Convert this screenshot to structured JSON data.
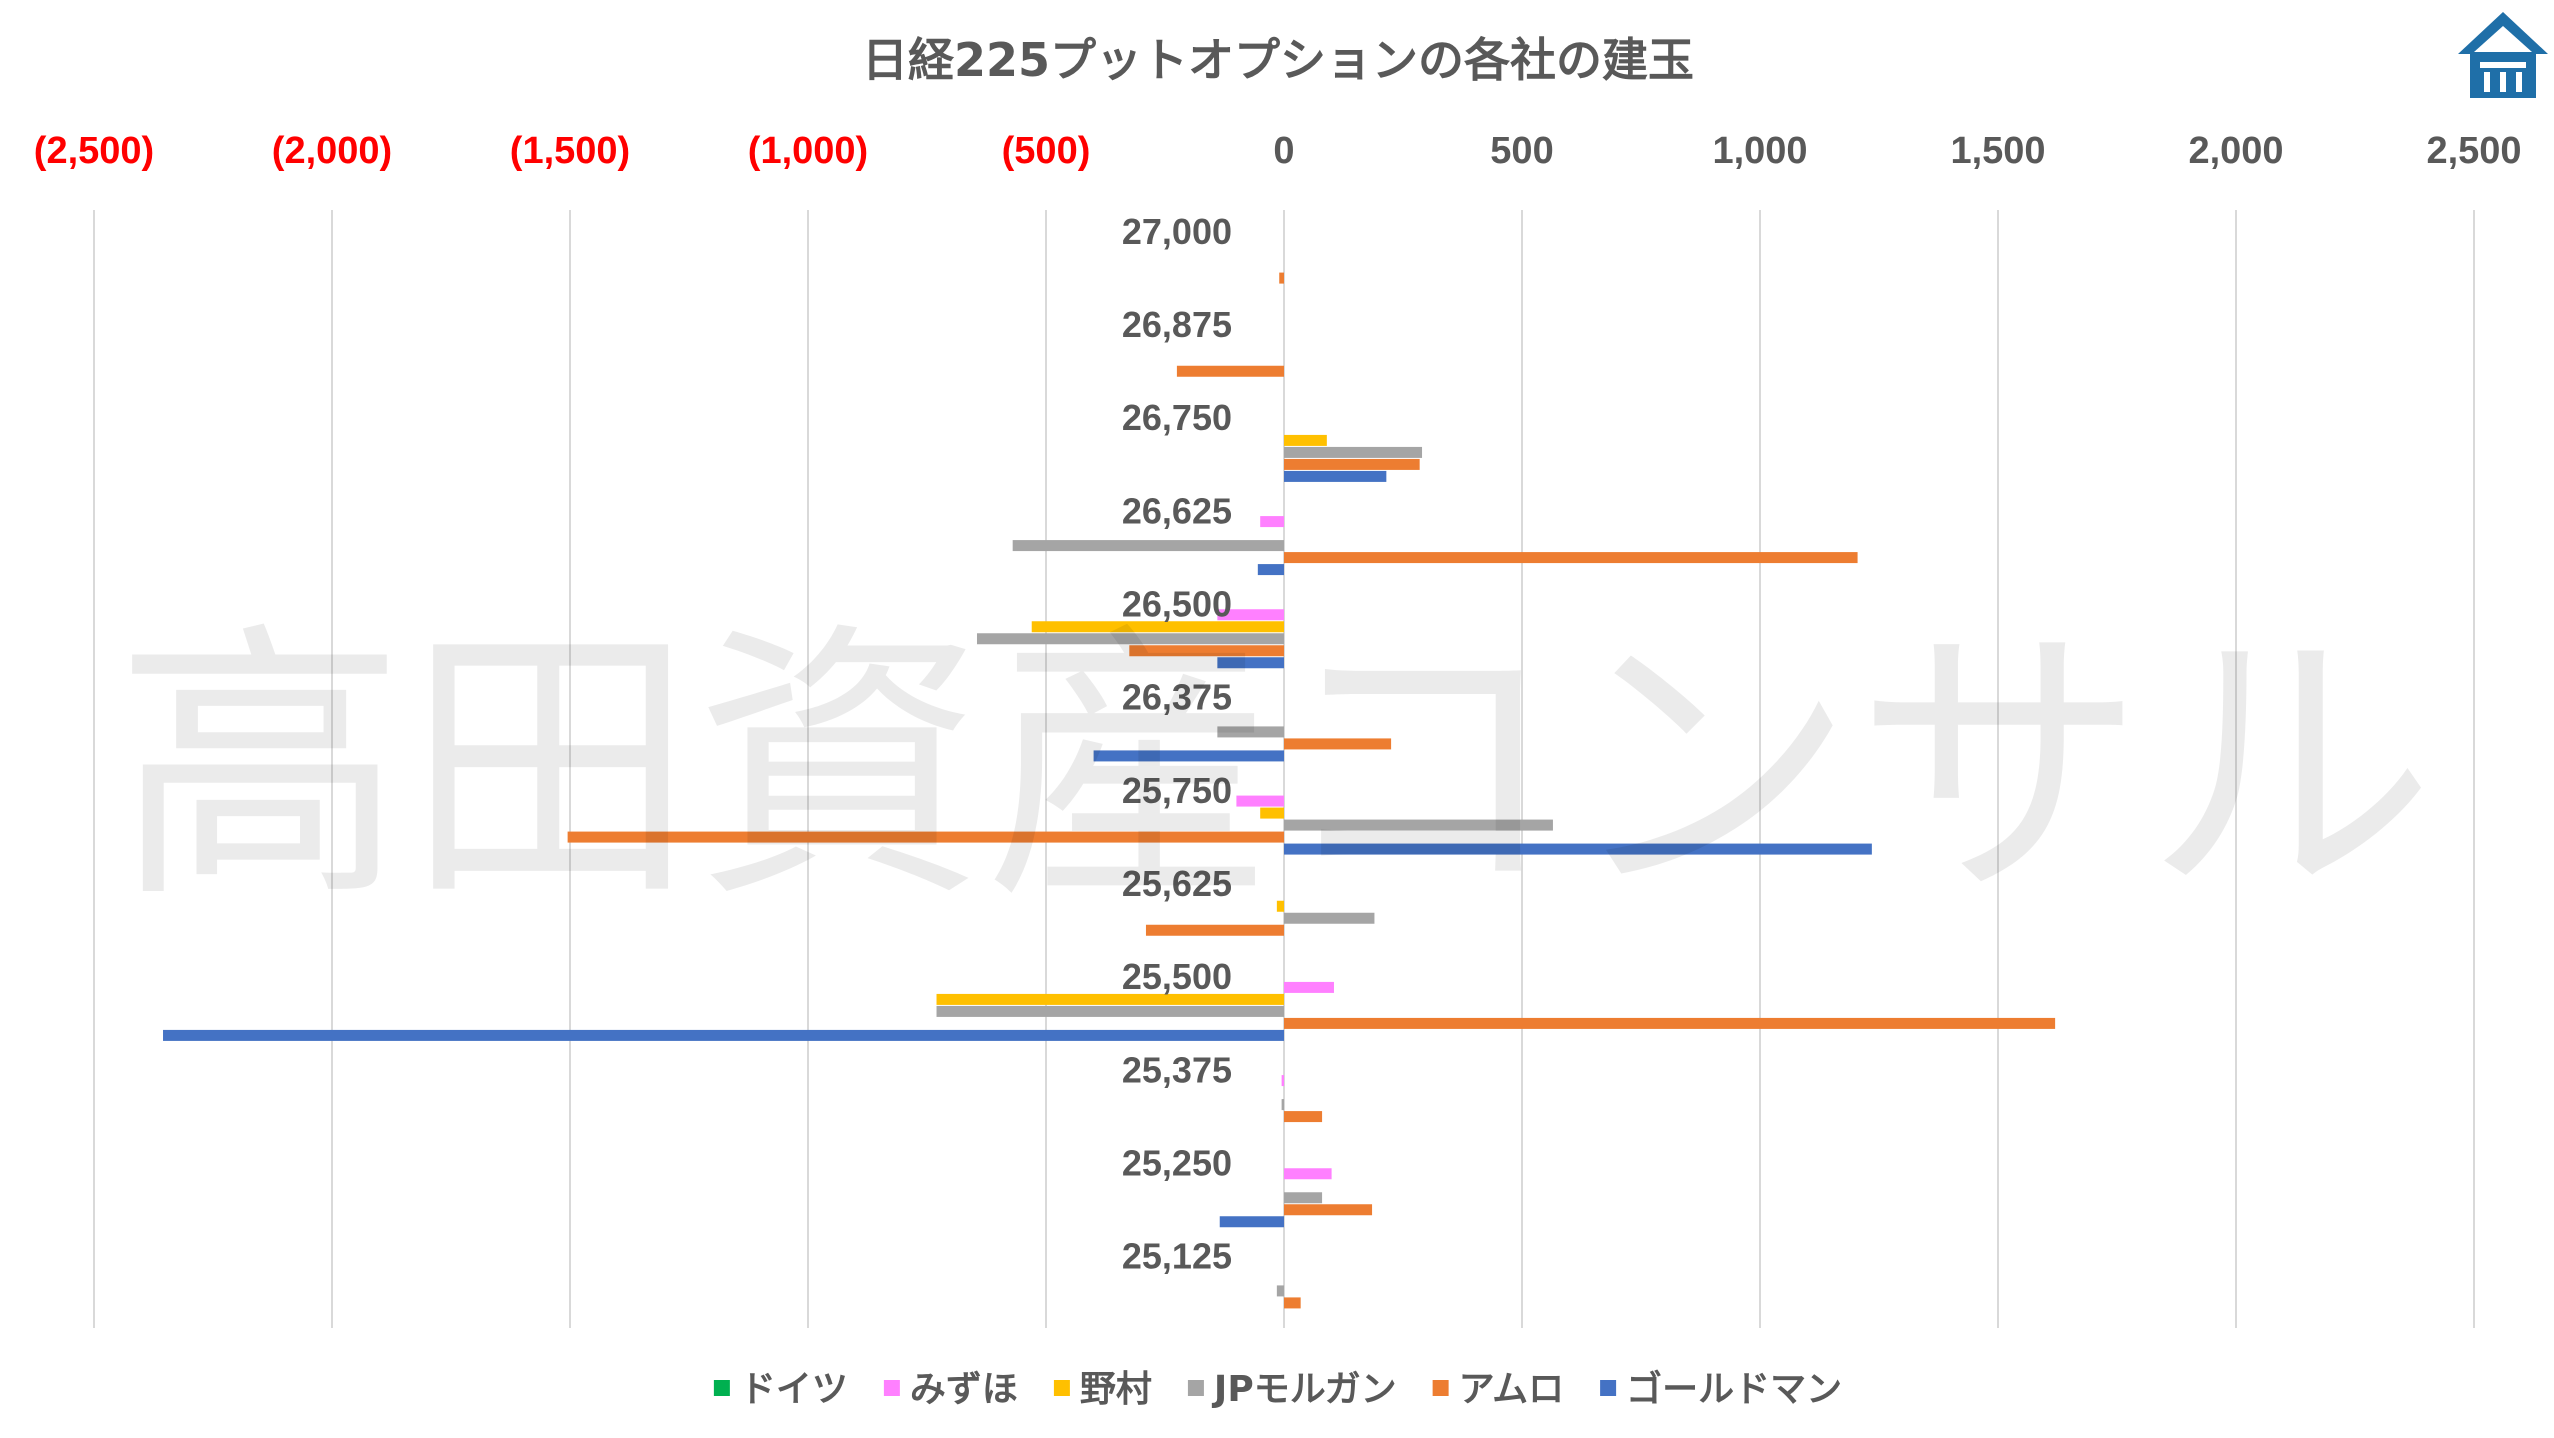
{
  "chart_data": {
    "type": "bar",
    "orientation": "horizontal",
    "title": "日経225プットオプションの各社の建玉",
    "watermark": "高田資産コンサル",
    "xlim": [
      -2500,
      2500
    ],
    "x_ticks": [
      -2500,
      -2000,
      -1500,
      -1000,
      -500,
      0,
      500,
      1000,
      1500,
      2000,
      2500
    ],
    "x_tick_labels": [
      "(2,500)",
      "(2,000)",
      "(1,500)",
      "(1,000)",
      "(500)",
      "0",
      "500",
      "1,000",
      "1,500",
      "2,000",
      "2,500"
    ],
    "negative_tick_color": "#ff0000",
    "positive_tick_color": "#595959",
    "grid": true,
    "legend_position": "bottom",
    "categories": [
      "27,000",
      "26,875",
      "26,750",
      "26,625",
      "26,500",
      "26,375",
      "25,750",
      "25,625",
      "25,500",
      "25,375",
      "25,250",
      "25,125"
    ],
    "series": [
      {
        "name": "ドイツ",
        "color": "#00b050",
        "values": [
          0,
          0,
          0,
          0,
          0,
          0,
          0,
          0,
          0,
          0,
          0,
          0
        ]
      },
      {
        "name": "みずほ",
        "color": "#ff80ff",
        "values": [
          0,
          0,
          0,
          -50,
          -140,
          0,
          -100,
          0,
          105,
          -5,
          100,
          0
        ]
      },
      {
        "name": "野村",
        "color": "#ffc000",
        "values": [
          0,
          0,
          90,
          0,
          -530,
          0,
          -50,
          -15,
          -730,
          0,
          0,
          0
        ]
      },
      {
        "name": "JPモルガン",
        "color": "#a5a5a5",
        "values": [
          0,
          0,
          290,
          -570,
          -645,
          -140,
          565,
          190,
          -730,
          -5,
          80,
          -15
        ]
      },
      {
        "name": "アムロ",
        "color": "#ed7d31",
        "values": [
          -10,
          -225,
          285,
          1205,
          -325,
          225,
          -1505,
          -290,
          1620,
          80,
          185,
          35
        ]
      },
      {
        "name": "ゴールドマン",
        "color": "#4472c4",
        "values": [
          0,
          0,
          215,
          -55,
          -140,
          -400,
          1235,
          0,
          -2355,
          0,
          -135,
          0
        ]
      }
    ]
  },
  "logo": {
    "icon": "takata-house-logo-icon",
    "color": "#1f6fa8"
  }
}
